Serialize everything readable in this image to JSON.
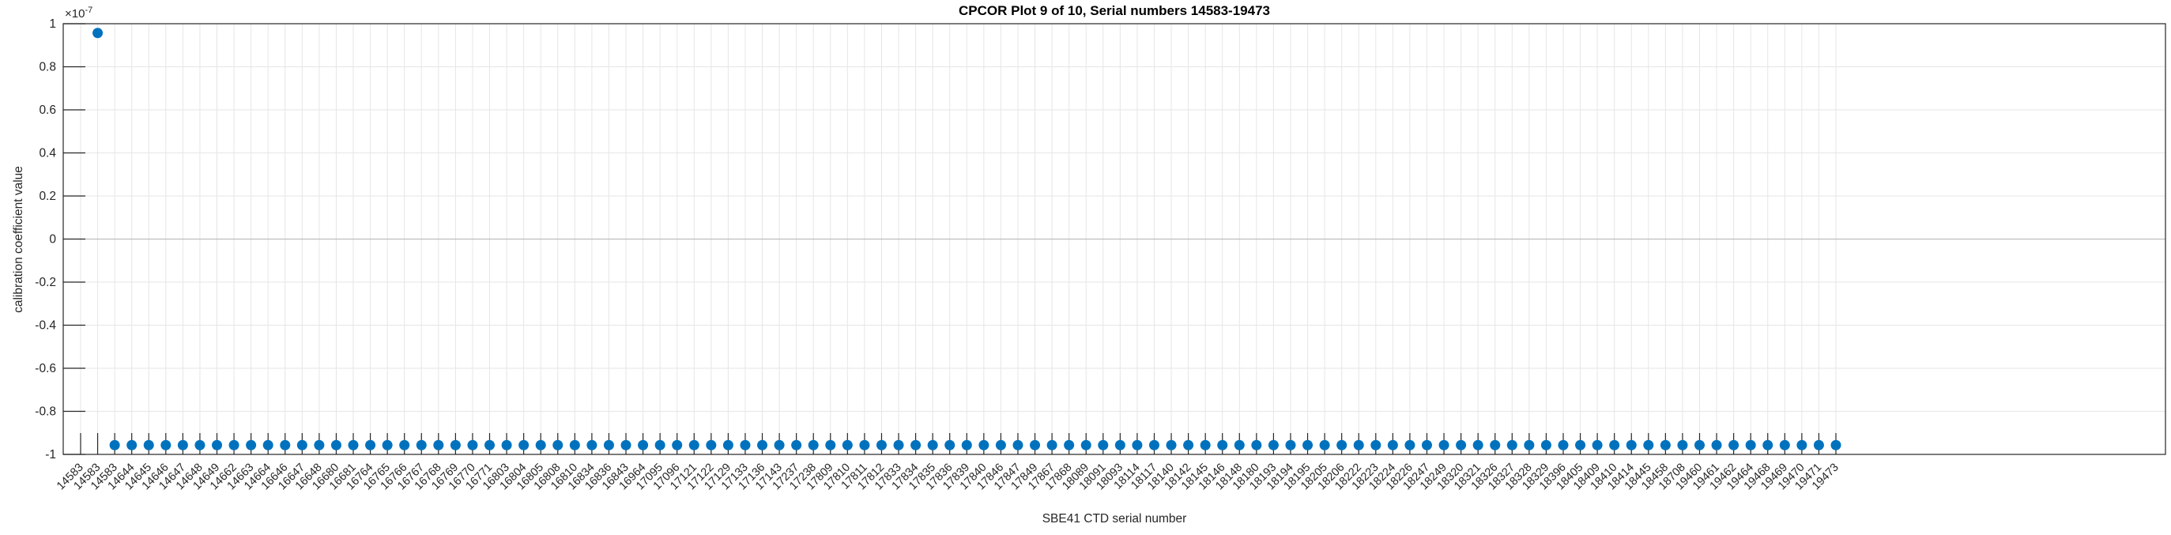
{
  "figure": {
    "title": "CPCOR Plot 9 of 10, Serial numbers 14583-19473",
    "xlabel": "SBE41 CTD serial number",
    "ylabel": "calibration coefficient value",
    "exponent": {
      "base": "×10",
      "exp": "-7"
    }
  },
  "chart_data": {
    "type": "scatter",
    "title": "CPCOR Plot 9 of 10, Serial numbers 14583-19473",
    "xlabel": "SBE41 CTD serial number",
    "ylabel": "calibration coefficient value",
    "ylim": [
      -1e-07,
      1e-07
    ],
    "y_axis_exponent_label": "×10^-7",
    "y_ticks": [
      1,
      0.8,
      0.6,
      0.4,
      0.2,
      0,
      -0.2,
      -0.4,
      -0.6,
      -0.8,
      -1
    ],
    "grid": true,
    "x_tick_label_rotation_deg": 45,
    "legend": null,
    "marker": "filled-circle",
    "marker_color": "#0072BD",
    "axis_color": "#262626",
    "grid_color": "#e6e6e6",
    "zero_line_color": "#b3b3b3",
    "note": "first serial has no plotted marker; second serial plotted at +9.57e-8; all others at -9.57e-8",
    "categories": [
      "14583",
      "14583",
      "14583",
      "14644",
      "14645",
      "14646",
      "14647",
      "14648",
      "14649",
      "14662",
      "14663",
      "14664",
      "16646",
      "16647",
      "16648",
      "16680",
      "16681",
      "16764",
      "16765",
      "16766",
      "16767",
      "16768",
      "16769",
      "16770",
      "16771",
      "16803",
      "16804",
      "16805",
      "16808",
      "16810",
      "16834",
      "16836",
      "16843",
      "16964",
      "17095",
      "17096",
      "17121",
      "17122",
      "17129",
      "17133",
      "17136",
      "17143",
      "17237",
      "17238",
      "17809",
      "17810",
      "17811",
      "17812",
      "17833",
      "17834",
      "17835",
      "17836",
      "17839",
      "17840",
      "17846",
      "17847",
      "17849",
      "17867",
      "17868",
      "18089",
      "18091",
      "18093",
      "18114",
      "18117",
      "18140",
      "18142",
      "18145",
      "18146",
      "18148",
      "18180",
      "18193",
      "18194",
      "18195",
      "18205",
      "18206",
      "18222",
      "18223",
      "18224",
      "18226",
      "18247",
      "18249",
      "18320",
      "18321",
      "18326",
      "18327",
      "18328",
      "18329",
      "18396",
      "18405",
      "18409",
      "18410",
      "18414",
      "18445",
      "18458",
      "18708",
      "19460",
      "19461",
      "19462",
      "19464",
      "19468",
      "19469",
      "19470",
      "19471",
      "19473"
    ],
    "values": [
      null,
      9.57e-08,
      -9.57e-08,
      -9.57e-08,
      -9.57e-08,
      -9.57e-08,
      -9.57e-08,
      -9.57e-08,
      -9.57e-08,
      -9.57e-08,
      -9.57e-08,
      -9.57e-08,
      -9.57e-08,
      -9.57e-08,
      -9.57e-08,
      -9.57e-08,
      -9.57e-08,
      -9.57e-08,
      -9.57e-08,
      -9.57e-08,
      -9.57e-08,
      -9.57e-08,
      -9.57e-08,
      -9.57e-08,
      -9.57e-08,
      -9.57e-08,
      -9.57e-08,
      -9.57e-08,
      -9.57e-08,
      -9.57e-08,
      -9.57e-08,
      -9.57e-08,
      -9.57e-08,
      -9.57e-08,
      -9.57e-08,
      -9.57e-08,
      -9.57e-08,
      -9.57e-08,
      -9.57e-08,
      -9.57e-08,
      -9.57e-08,
      -9.57e-08,
      -9.57e-08,
      -9.57e-08,
      -9.57e-08,
      -9.57e-08,
      -9.57e-08,
      -9.57e-08,
      -9.57e-08,
      -9.57e-08,
      -9.57e-08,
      -9.57e-08,
      -9.57e-08,
      -9.57e-08,
      -9.57e-08,
      -9.57e-08,
      -9.57e-08,
      -9.57e-08,
      -9.57e-08,
      -9.57e-08,
      -9.57e-08,
      -9.57e-08,
      -9.57e-08,
      -9.57e-08,
      -9.57e-08,
      -9.57e-08,
      -9.57e-08,
      -9.57e-08,
      -9.57e-08,
      -9.57e-08,
      -9.57e-08,
      -9.57e-08,
      -9.57e-08,
      -9.57e-08,
      -9.57e-08,
      -9.57e-08,
      -9.57e-08,
      -9.57e-08,
      -9.57e-08,
      -9.57e-08,
      -9.57e-08,
      -9.57e-08,
      -9.57e-08,
      -9.57e-08,
      -9.57e-08,
      -9.57e-08,
      -9.57e-08,
      -9.57e-08,
      -9.57e-08,
      -9.57e-08,
      -9.57e-08,
      -9.57e-08,
      -9.57e-08,
      -9.57e-08,
      -9.57e-08,
      -9.57e-08,
      -9.57e-08,
      -9.57e-08,
      -9.57e-08,
      -9.57e-08,
      -9.57e-08,
      -9.57e-08,
      -9.57e-08,
      -9.57e-08
    ]
  }
}
